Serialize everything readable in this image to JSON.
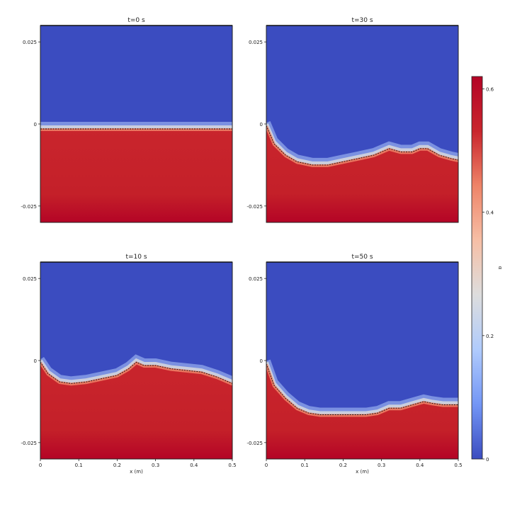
{
  "colorbar": {
    "label": "α",
    "ticks": [
      {
        "value": 0,
        "label": "0"
      },
      {
        "value": 0.2,
        "label": "0.2"
      },
      {
        "value": 0.4,
        "label": "0.4"
      },
      {
        "value": 0.6,
        "label": "0.6"
      }
    ],
    "range": [
      0,
      0.62
    ],
    "colormap": [
      "#3b4cc0",
      "#7396f5",
      "#b0cbfc",
      "#dddddd",
      "#f6bfa6",
      "#ee8468",
      "#c9252d",
      "#b40426"
    ]
  },
  "chart_data": [
    {
      "type": "heatmap",
      "title": "t=0 s",
      "xlabel": "",
      "xlim": [
        0,
        0.5
      ],
      "ylim": [
        -0.03,
        0.03
      ],
      "yticks": [
        {
          "value": 0.025,
          "label": "0.025"
        },
        {
          "value": 0,
          "label": "0"
        },
        {
          "value": -0.025,
          "label": "-0.025"
        }
      ],
      "xticks": [],
      "upper_value": 0.0,
      "lower_value": 0.6,
      "interface": {
        "x": [
          0,
          0.5
        ],
        "y": [
          -0.0015,
          -0.0015
        ]
      }
    },
    {
      "type": "heatmap",
      "title": "t=30 s",
      "xlabel": "",
      "xlim": [
        0,
        0.5
      ],
      "ylim": [
        -0.03,
        0.03
      ],
      "yticks": [
        {
          "value": 0.025,
          "label": "0.025"
        },
        {
          "value": 0,
          "label": "0"
        },
        {
          "value": -0.025,
          "label": "-0.025"
        }
      ],
      "xticks": [],
      "upper_value": 0.0,
      "lower_value": 0.6,
      "interface": {
        "x": [
          0,
          0.02,
          0.05,
          0.08,
          0.12,
          0.16,
          0.2,
          0.24,
          0.28,
          0.3,
          0.32,
          0.35,
          0.38,
          0.4,
          0.42,
          0.45,
          0.48,
          0.5
        ],
        "y": [
          -0.0005,
          -0.006,
          -0.0095,
          -0.0115,
          -0.0125,
          -0.0125,
          -0.0115,
          -0.0105,
          -0.0095,
          -0.0085,
          -0.0075,
          -0.0085,
          -0.0085,
          -0.0075,
          -0.0075,
          -0.0095,
          -0.0105,
          -0.011
        ]
      }
    },
    {
      "type": "heatmap",
      "title": "t=10 s",
      "xlabel": "x (m)",
      "xlim": [
        0,
        0.5
      ],
      "ylim": [
        -0.03,
        0.03
      ],
      "yticks": [
        {
          "value": 0.025,
          "label": "0.025"
        },
        {
          "value": 0,
          "label": "0"
        },
        {
          "value": -0.025,
          "label": "-0.025"
        }
      ],
      "xticks": [
        {
          "value": 0,
          "label": "0"
        },
        {
          "value": 0.1,
          "label": "0.1"
        },
        {
          "value": 0.2,
          "label": "0.2"
        },
        {
          "value": 0.3,
          "label": "0.3"
        },
        {
          "value": 0.4,
          "label": "0.4"
        },
        {
          "value": 0.5,
          "label": "0.5"
        }
      ],
      "upper_value": 0.0,
      "lower_value": 0.6,
      "interface": {
        "x": [
          0,
          0.02,
          0.05,
          0.08,
          0.12,
          0.16,
          0.2,
          0.23,
          0.25,
          0.27,
          0.3,
          0.34,
          0.38,
          0.42,
          0.46,
          0.5
        ],
        "y": [
          -0.0005,
          -0.004,
          -0.0065,
          -0.007,
          -0.0065,
          -0.0055,
          -0.0045,
          -0.0025,
          -0.0005,
          -0.0015,
          -0.0015,
          -0.0025,
          -0.003,
          -0.0035,
          -0.005,
          -0.007
        ]
      }
    },
    {
      "type": "heatmap",
      "title": "t=50 s",
      "xlabel": "x (m)",
      "xlim": [
        0,
        0.5
      ],
      "ylim": [
        -0.03,
        0.03
      ],
      "yticks": [
        {
          "value": 0.025,
          "label": "0.025"
        },
        {
          "value": 0,
          "label": "0"
        },
        {
          "value": -0.025,
          "label": "-0.025"
        }
      ],
      "xticks": [
        {
          "value": 0,
          "label": "0"
        },
        {
          "value": 0.1,
          "label": "0.1"
        },
        {
          "value": 0.2,
          "label": "0.2"
        },
        {
          "value": 0.3,
          "label": "0.3"
        },
        {
          "value": 0.4,
          "label": "0.4"
        },
        {
          "value": 0.5,
          "label": "0.5"
        }
      ],
      "upper_value": 0.0,
      "lower_value": 0.6,
      "interface": {
        "x": [
          0,
          0.02,
          0.05,
          0.08,
          0.11,
          0.14,
          0.18,
          0.22,
          0.26,
          0.29,
          0.32,
          0.35,
          0.38,
          0.41,
          0.43,
          0.46,
          0.5
        ],
        "y": [
          -0.001,
          -0.0075,
          -0.0115,
          -0.0145,
          -0.016,
          -0.0165,
          -0.0165,
          -0.0165,
          -0.0165,
          -0.016,
          -0.0145,
          -0.0145,
          -0.0135,
          -0.0125,
          -0.013,
          -0.0135,
          -0.0135
        ]
      }
    }
  ]
}
